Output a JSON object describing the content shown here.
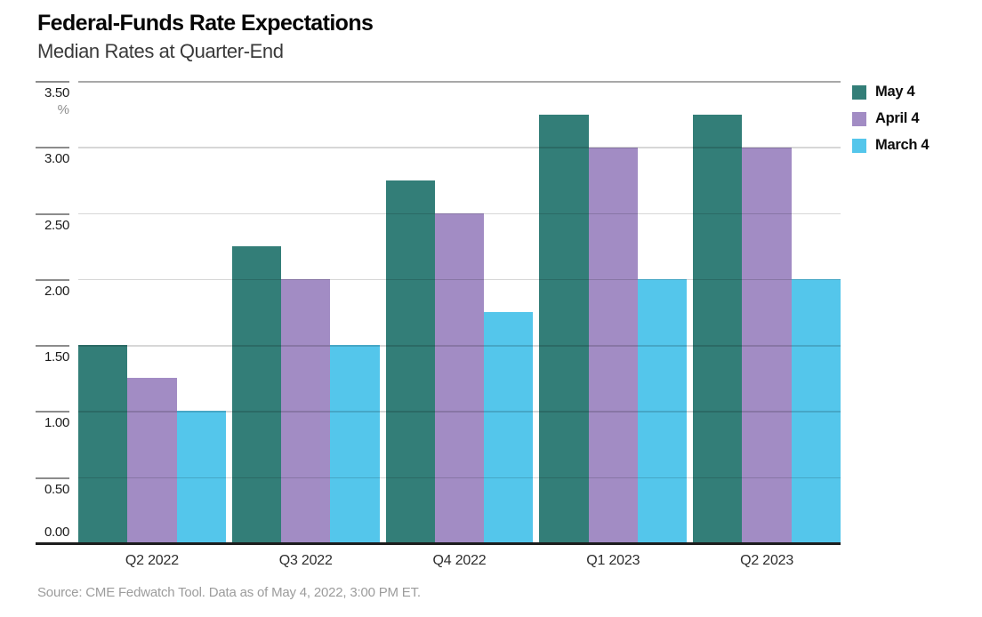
{
  "header": {
    "title": "Federal-Funds Rate Expectations",
    "subtitle": "Median Rates at Quarter-End"
  },
  "source": "Source: CME Fedwatch Tool. Data as of May 4, 2022, 3:00 PM ET.",
  "chart_data": {
    "type": "bar",
    "title": "Federal-Funds Rate Expectations",
    "subtitle": "Median Rates at Quarter-End",
    "categories": [
      "Q2 2022",
      "Q3 2022",
      "Q4 2022",
      "Q1 2023",
      "Q2 2023"
    ],
    "series": [
      {
        "name": "May 4",
        "color": "#337E78",
        "values": [
          1.5,
          2.25,
          2.75,
          3.25,
          3.25
        ]
      },
      {
        "name": "April 4",
        "color": "#A28CC4",
        "values": [
          1.25,
          2.0,
          2.5,
          3.0,
          3.0
        ]
      },
      {
        "name": "March 4",
        "color": "#54C6EB",
        "values": [
          1.0,
          1.5,
          1.75,
          2.0,
          2.0
        ]
      }
    ],
    "ylabel": "%",
    "ylim": [
      0,
      3.5
    ],
    "ytick_labels": [
      "3.50",
      "3.00",
      "2.50",
      "2.00",
      "1.50",
      "1.00",
      "0.50",
      "0.00"
    ],
    "grid": true,
    "legend_position": "top-right"
  },
  "colors": {
    "gridline": "#d9d9d9",
    "axis": "#1d1d1d",
    "background": "#ffffff"
  }
}
